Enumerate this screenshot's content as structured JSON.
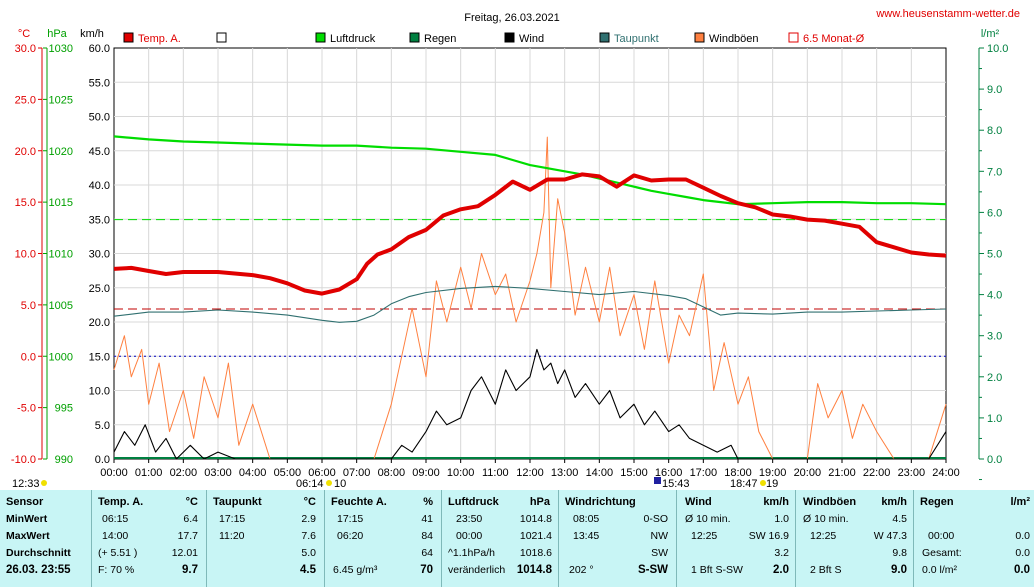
{
  "title": "Freitag, 26.03.2021",
  "site": "www.heusenstamm-wetter.de",
  "axis_units": {
    "temp": "°C",
    "press": "hPa",
    "wind": "km/h",
    "rain": "l/m²"
  },
  "legend": [
    {
      "label": "Temp. A.",
      "color": "#e00000",
      "type": "box"
    },
    {
      "label": "",
      "color": "#ffffff",
      "type": "box"
    },
    {
      "label": "Luftdruck",
      "color": "#00dd00",
      "type": "box"
    },
    {
      "label": "Regen",
      "color": "#008040",
      "type": "box"
    },
    {
      "label": "Wind",
      "color": "#000000",
      "type": "box"
    },
    {
      "label": "Taupunkt",
      "color": "#307070",
      "type": "box"
    },
    {
      "label": "Windböen",
      "color": "#ff8040",
      "type": "box"
    },
    {
      "label": "6.5 Monat-Ø",
      "color": "#e00000",
      "type": "hollow"
    }
  ],
  "time_markers": {
    "left": "12:33",
    "sunrise": "06:14",
    "moonrise": "10",
    "moon": "15:43",
    "sunset": "18:47",
    "moonset": "19"
  },
  "chart_data": {
    "type": "line",
    "x_ticks": [
      "00:00",
      "01:00",
      "02:00",
      "03:00",
      "04:00",
      "05:00",
      "06:00",
      "07:00",
      "08:00",
      "09:00",
      "10:00",
      "11:00",
      "12:00",
      "13:00",
      "14:00",
      "15:00",
      "16:00",
      "17:00",
      "18:00",
      "19:00",
      "20:00",
      "21:00",
      "22:00",
      "23:00",
      "24:00"
    ],
    "xlim": [
      0,
      24
    ],
    "temp_axis": {
      "ticks": [
        "30.0",
        "25.0",
        "20.0",
        "15.0",
        "10.0",
        "5.0",
        "0.0",
        "-5.0",
        "-10.0"
      ],
      "ylim": [
        -10,
        30
      ]
    },
    "pressure_axis": {
      "ticks": [
        "1030",
        "1025",
        "1020",
        "1015",
        "1010",
        "1005",
        "1000",
        "995",
        "990"
      ],
      "ylim": [
        990,
        1030
      ]
    },
    "wind_axis": {
      "ticks": [
        "60.0",
        "55.0",
        "50.0",
        "45.0",
        "40.0",
        "35.0",
        "30.0",
        "25.0",
        "20.0",
        "15.0",
        "10.0",
        "5.0",
        "0.0"
      ],
      "ylim": [
        0,
        60
      ]
    },
    "rain_axis": {
      "ticks": [
        "10.0",
        "9.0",
        "8.0",
        "7.0",
        "6.0",
        "5.0",
        "4.0",
        "3.0",
        "2.0",
        "1.0",
        "0.0"
      ],
      "ylim": [
        0,
        10
      ]
    },
    "reference_lines": {
      "temp_monthly_avg": 4.6,
      "pressure_avg": 1013.3,
      "zero_temp": 0
    },
    "series": [
      {
        "name": "Temp. A.",
        "color": "#e00000",
        "unit": "°C",
        "x": [
          0,
          0.5,
          1,
          1.5,
          2,
          3,
          4,
          4.5,
          5,
          5.5,
          6,
          6.5,
          7,
          7.3,
          7.6,
          8,
          8.5,
          9,
          9.5,
          10,
          10.5,
          11,
          11.5,
          12,
          12.5,
          13,
          13.5,
          14,
          14.5,
          15,
          15.5,
          16,
          16.5,
          17,
          17.5,
          18,
          18.5,
          19,
          19.5,
          20,
          20.5,
          21,
          21.5,
          22,
          22.5,
          23,
          23.5,
          24
        ],
        "y": [
          8.5,
          8.6,
          8.3,
          8.0,
          8.2,
          8.2,
          7.9,
          7.6,
          7.1,
          6.4,
          6.1,
          6.5,
          7.5,
          9.0,
          9.9,
          10.4,
          11.6,
          12.3,
          13.7,
          14.3,
          14.6,
          15.7,
          17.0,
          16.2,
          17.2,
          17.2,
          17.7,
          17.5,
          16.5,
          17.6,
          17.1,
          17.2,
          17.2,
          16.4,
          15.6,
          14.9,
          14.5,
          13.8,
          13.6,
          13.3,
          13.2,
          12.9,
          12.6,
          11.1,
          10.6,
          10.1,
          9.9,
          9.8
        ]
      },
      {
        "name": "Luftdruck",
        "color": "#00dd00",
        "unit": "hPa",
        "x": [
          0,
          1,
          2,
          3,
          4,
          5,
          6,
          7,
          8,
          9,
          10,
          11,
          11.5,
          12,
          12.5,
          13,
          13.5,
          14,
          14.5,
          15,
          15.5,
          16,
          16.5,
          17,
          17.5,
          18,
          19,
          20,
          21,
          22,
          23,
          24
        ],
        "y": [
          1021.4,
          1021.1,
          1020.9,
          1020.8,
          1020.7,
          1020.6,
          1020.5,
          1020.5,
          1020.3,
          1020.2,
          1019.9,
          1019.6,
          1019.1,
          1018.6,
          1018.3,
          1018.0,
          1017.7,
          1017.3,
          1016.9,
          1016.5,
          1016.1,
          1015.8,
          1015.5,
          1015.2,
          1015.0,
          1014.8,
          1014.9,
          1015.0,
          1015.0,
          1014.9,
          1014.9,
          1014.8
        ]
      },
      {
        "name": "Taupunkt",
        "color": "#307070",
        "unit": "°C",
        "x": [
          0,
          1,
          2,
          3,
          4,
          5,
          6,
          6.5,
          7,
          7.5,
          8,
          8.5,
          9,
          10,
          11,
          12,
          13,
          14,
          15,
          16,
          16.5,
          17,
          17.5,
          18,
          19,
          20,
          21,
          22,
          23,
          24
        ],
        "y": [
          3.9,
          4.3,
          4.3,
          4.5,
          4.3,
          4.0,
          3.5,
          3.3,
          3.4,
          4.0,
          5.1,
          5.8,
          6.2,
          6.6,
          6.8,
          6.6,
          6.3,
          6.0,
          6.3,
          5.9,
          5.6,
          4.8,
          4.0,
          4.2,
          4.1,
          4.3,
          4.3,
          4.4,
          4.5,
          4.6
        ]
      },
      {
        "name": "Wind",
        "color": "#000000",
        "unit": "km/h",
        "x": [
          0,
          0.3,
          0.6,
          0.9,
          1.2,
          1.5,
          1.8,
          2.2,
          2.6,
          3,
          3.5,
          4,
          4.5,
          5,
          5.5,
          6,
          6.5,
          7,
          7.5,
          8,
          8.3,
          8.6,
          9,
          9.3,
          9.6,
          10,
          10.3,
          10.6,
          11,
          11.3,
          11.6,
          12,
          12.2,
          12.4,
          12.6,
          12.8,
          13,
          13.3,
          13.6,
          14,
          14.3,
          14.6,
          15,
          15.3,
          15.6,
          16,
          16.3,
          16.6,
          17,
          17.4,
          17.8,
          18,
          18.5,
          19,
          19.5,
          20,
          20.5,
          21,
          21.5,
          22,
          22.5,
          23,
          23.5,
          24
        ],
        "y": [
          1,
          4,
          2,
          5,
          1,
          3,
          0,
          2,
          0,
          1,
          0,
          0,
          0,
          0,
          0,
          0,
          0,
          0,
          0,
          0,
          2,
          1,
          4,
          7,
          5,
          6,
          10,
          12,
          8,
          13,
          10,
          12,
          16,
          13,
          14,
          11,
          13,
          9,
          11,
          8,
          10,
          6,
          8,
          5,
          7,
          4,
          5,
          3,
          2,
          1,
          2,
          0,
          0,
          0,
          0,
          0,
          0,
          0,
          0,
          0,
          0,
          0,
          0,
          4
        ]
      },
      {
        "name": "Windböen",
        "color": "#ff8040",
        "unit": "km/h",
        "x": [
          0,
          0.3,
          0.5,
          0.8,
          1,
          1.3,
          1.6,
          2,
          2.3,
          2.6,
          3,
          3.3,
          3.6,
          4,
          4.5,
          5,
          5.5,
          6,
          6.5,
          7,
          7.5,
          8,
          8.3,
          8.6,
          9,
          9.3,
          9.6,
          10,
          10.3,
          10.6,
          11,
          11.3,
          11.6,
          12,
          12.2,
          12.4,
          12.5,
          12.6,
          12.8,
          13,
          13.3,
          13.6,
          14,
          14.3,
          14.6,
          15,
          15.3,
          15.6,
          16,
          16.3,
          16.6,
          17,
          17.3,
          17.6,
          18,
          18.3,
          18.6,
          19,
          19.5,
          20,
          20.3,
          20.6,
          21,
          21.3,
          21.6,
          22,
          22.5,
          23,
          23.5,
          24
        ],
        "y": [
          13,
          18,
          12,
          16,
          8,
          14,
          4,
          10,
          3,
          12,
          6,
          14,
          2,
          8,
          0,
          0,
          0,
          0,
          0,
          0,
          0,
          8,
          15,
          22,
          12,
          26,
          20,
          28,
          22,
          30,
          24,
          27,
          20,
          26,
          30,
          36,
          47,
          25,
          38,
          33,
          21,
          28,
          20,
          28,
          18,
          24,
          16,
          26,
          14,
          21,
          18,
          27,
          10,
          17,
          8,
          12,
          4,
          0,
          0,
          0,
          11,
          6,
          10,
          3,
          8,
          4,
          0,
          0,
          0,
          8
        ]
      }
    ]
  },
  "stats": {
    "sensor": {
      "header": "Sensor",
      "rows": [
        "MinWert",
        "MaxWert",
        "Durchschnitt"
      ],
      "foot": "26.03. 23:55"
    },
    "temp": {
      "header": "Temp. A.",
      "unit": "°C",
      "min_time": "06:15",
      "min": "6.4",
      "max_time": "14:00",
      "max": "17.7",
      "avg_diff": "(+ 5.51 )",
      "avg": "12.01",
      "foot_label": "F: 70 %",
      "foot_val": "9.7"
    },
    "dew": {
      "header": "Taupunkt",
      "unit": "°C",
      "min_time": "17:15",
      "min": "2.9",
      "max_time": "11:20",
      "max": "7.6",
      "avg": "5.0",
      "foot_val": "4.5"
    },
    "hum": {
      "header": "Feuchte A.",
      "unit": "%",
      "min_time": "17:15",
      "min": "41",
      "max_time": "06:20",
      "max": "84",
      "avg": "64",
      "foot_label": "6.45 g/m³",
      "foot_val": "70"
    },
    "press": {
      "header": "Luftdruck",
      "unit": "hPa",
      "min_time": "23:50",
      "min": "1014.8",
      "max_time": "00:00",
      "max": "1021.4",
      "avg_label": "^1.1hPa/h",
      "avg": "1018.6",
      "foot_label": "veränderlich",
      "foot_val": "1014.8"
    },
    "dir": {
      "header": "Windrichtung",
      "min_time": "08:05",
      "min": "0-SO",
      "max_time": "13:45",
      "max": "NW",
      "avg": "SW",
      "foot_label": "202 °",
      "foot_val": "S-SW"
    },
    "wind": {
      "header": "Wind",
      "unit": "km/h",
      "min_label": "Ø 10 min.",
      "min": "1.0",
      "max_time": "12:25",
      "max": "SW 16.9",
      "avg": "3.2",
      "foot_label": "1 Bft S-SW",
      "foot_val": "2.0"
    },
    "gust": {
      "header": "Windböen",
      "unit": "km/h",
      "min_label": "Ø 10 min.",
      "min": "4.5",
      "max_time": "12:25",
      "max": "W 47.3",
      "avg": "9.8",
      "foot_label": "2 Bft S",
      "foot_val": "9.0"
    },
    "rain": {
      "header": "Regen",
      "unit": "l/m²",
      "min_time": "00:00",
      "min": "0.0",
      "avg_label": "Gesamt:",
      "avg": "0.0",
      "foot_label": "0.0 l/m²",
      "foot_val": "0.0"
    }
  }
}
